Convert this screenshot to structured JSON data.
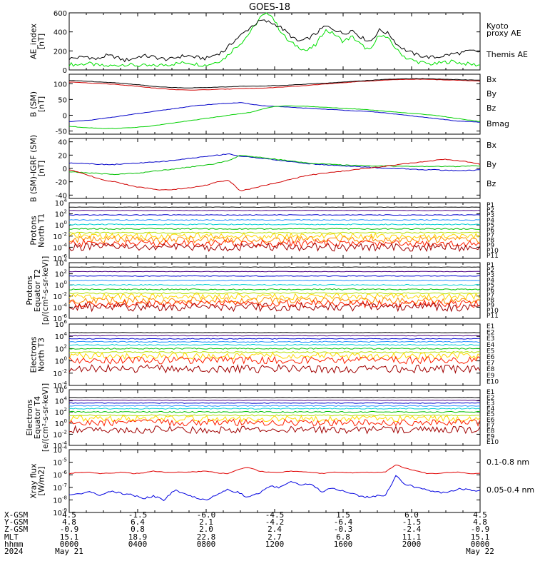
{
  "title": "GOES-18",
  "chart_data": [
    {
      "id": "ae",
      "type": "line",
      "ylabel": [
        "AE_index",
        "[nT]"
      ],
      "ylim": [
        0,
        600
      ],
      "log": false,
      "yticks": [
        0,
        200,
        400,
        600
      ],
      "series": [
        {
          "name": "Kyoto proxy AE",
          "color": "#00e000",
          "values": [
            60,
            55,
            70,
            50,
            40,
            45,
            60,
            50,
            45,
            40,
            50,
            60,
            70,
            80,
            60,
            50,
            80,
            120,
            220,
            300,
            420,
            560,
            600,
            430,
            300,
            250,
            200,
            260,
            420,
            380,
            300,
            350,
            260,
            200,
            380,
            320,
            200,
            120,
            90,
            70,
            60,
            80,
            90,
            70,
            60,
            50
          ]
        },
        {
          "name": "Themis AE",
          "color": "#000000",
          "values": [
            120,
            130,
            140,
            110,
            150,
            140,
            100,
            120,
            150,
            140,
            120,
            110,
            140,
            150,
            130,
            120,
            160,
            200,
            300,
            380,
            460,
            520,
            500,
            460,
            380,
            300,
            320,
            380,
            460,
            430,
            380,
            420,
            340,
            300,
            420,
            380,
            260,
            200,
            160,
            140,
            130,
            150,
            170,
            180,
            200,
            190
          ]
        }
      ]
    },
    {
      "id": "bsm",
      "type": "line",
      "ylabel": [
        "B (SM)",
        "[nT]"
      ],
      "ylim": [
        -60,
        130
      ],
      "log": false,
      "yticks": [
        -50,
        0,
        50,
        100
      ],
      "series": [
        {
          "name": "Bx",
          "color": "#0000c8",
          "values": [
            -20,
            -18,
            -15,
            -10,
            -5,
            0,
            5,
            10,
            15,
            20,
            25,
            30,
            33,
            36,
            38,
            40,
            35,
            30,
            28,
            26,
            24,
            22,
            20,
            18,
            16,
            14,
            12,
            10,
            6,
            2,
            -2,
            -6,
            -10,
            -14,
            -18,
            -20,
            -22
          ]
        },
        {
          "name": "By",
          "color": "#00d000",
          "values": [
            -35,
            -38,
            -40,
            -42,
            -42,
            -40,
            -38,
            -35,
            -30,
            -25,
            -20,
            -15,
            -10,
            -5,
            0,
            5,
            10,
            20,
            28,
            30,
            29,
            28,
            26,
            24,
            22,
            20,
            18,
            15,
            12,
            9,
            6,
            3,
            0,
            -5,
            -10,
            -15,
            -20
          ]
        },
        {
          "name": "Bz",
          "color": "#d00000",
          "values": [
            105,
            104,
            102,
            100,
            98,
            95,
            92,
            88,
            84,
            82,
            80,
            80,
            81,
            82,
            83,
            85,
            85,
            86,
            88,
            90,
            92,
            95,
            98,
            100,
            103,
            106,
            108,
            110,
            112,
            113,
            114,
            114,
            113,
            112,
            111,
            110,
            108
          ]
        },
        {
          "name": "Bmag",
          "color": "#000000",
          "values": [
            110,
            109,
            107,
            105,
            103,
            100,
            97,
            93,
            90,
            88,
            87,
            87,
            88,
            89,
            90,
            92,
            92,
            93,
            94,
            95,
            97,
            99,
            101,
            103,
            105,
            108,
            110,
            112,
            114,
            115,
            116,
            116,
            115,
            114,
            113,
            112,
            111
          ]
        }
      ]
    },
    {
      "id": "bigrf",
      "type": "line",
      "ylabel": [
        "B (SM)-IGRF (SM)",
        "[nT]"
      ],
      "ylim": [
        -45,
        45
      ],
      "log": false,
      "yticks": [
        -40,
        -20,
        0,
        20,
        40
      ],
      "series": [
        {
          "name": "Bx",
          "color": "#0000c8",
          "values": [
            8,
            8,
            7,
            6,
            6,
            7,
            8,
            9,
            10,
            12,
            14,
            16,
            18,
            20,
            22,
            18,
            17,
            15,
            13,
            11,
            9,
            7,
            6,
            5,
            4,
            3,
            2,
            1,
            0,
            0,
            -1,
            -2,
            -2,
            -3,
            -3,
            -3,
            -2
          ]
        },
        {
          "name": "By",
          "color": "#00c000",
          "values": [
            -5,
            -6,
            -7,
            -8,
            -9,
            -8,
            -7,
            -5,
            -3,
            -1,
            1,
            3,
            5,
            8,
            12,
            20,
            18,
            16,
            14,
            12,
            10,
            8,
            7,
            6,
            5,
            5,
            4,
            4,
            4,
            3,
            3,
            3,
            3,
            3,
            3,
            4,
            4
          ]
        },
        {
          "name": "Bz",
          "color": "#d00000",
          "values": [
            -2,
            -6,
            -12,
            -18,
            -20,
            -24,
            -28,
            -30,
            -32,
            -32,
            -30,
            -28,
            -25,
            -20,
            -18,
            -34,
            -30,
            -26,
            -22,
            -18,
            -14,
            -10,
            -8,
            -6,
            -4,
            -2,
            0,
            2,
            4,
            6,
            8,
            10,
            12,
            14,
            12,
            10,
            6
          ]
        }
      ]
    },
    {
      "id": "pnorth",
      "type": "line",
      "ylabel": [
        "Protons",
        "North T1"
      ],
      "ylim": [
        -6,
        4
      ],
      "log": true,
      "yticks": [
        -6,
        -4,
        -2,
        0,
        2,
        4
      ],
      "series": [
        {
          "name": "P1",
          "color": "#000000",
          "values": [
            3.2
          ]
        },
        {
          "name": "P2",
          "color": "#4b0082",
          "values": [
            2.6
          ]
        },
        {
          "name": "P3",
          "color": "#0000cd",
          "values": [
            1.8
          ]
        },
        {
          "name": "P4",
          "color": "#1e90ff",
          "values": [
            0.9
          ]
        },
        {
          "name": "P5",
          "color": "#00ced1",
          "values": [
            0.1
          ]
        },
        {
          "name": "P6",
          "color": "#00c000",
          "values": [
            -0.7
          ]
        },
        {
          "name": "P7",
          "color": "#b0e000",
          "values": [
            -1.4
          ]
        },
        {
          "name": "P8",
          "color": "#ffd700",
          "values": [
            -2.0
          ]
        },
        {
          "name": "P9",
          "color": "#ff8c00",
          "values": [
            -2.6
          ]
        },
        {
          "name": "P10",
          "color": "#ff2000",
          "values": [
            -3.3
          ]
        },
        {
          "name": "P11",
          "color": "#a00000",
          "values": [
            -4.0
          ]
        }
      ]
    },
    {
      "id": "pequator",
      "type": "line",
      "ylabel": [
        "Protons",
        "Equator T2",
        "[p/(cm²-s-sr-keV)]"
      ],
      "ylim": [
        -6,
        4
      ],
      "log": true,
      "yticks": [
        -6,
        -4,
        -2,
        0,
        2,
        4
      ],
      "series": [
        {
          "name": "P1",
          "color": "#000000",
          "values": [
            3.2
          ]
        },
        {
          "name": "P2",
          "color": "#4b0082",
          "values": [
            2.4
          ]
        },
        {
          "name": "P3",
          "color": "#0000cd",
          "values": [
            1.6
          ]
        },
        {
          "name": "P4",
          "color": "#1e90ff",
          "values": [
            0.8
          ]
        },
        {
          "name": "P5",
          "color": "#00ced1",
          "values": [
            0.0
          ]
        },
        {
          "name": "P6",
          "color": "#00c000",
          "values": [
            -0.8
          ]
        },
        {
          "name": "P7",
          "color": "#b0e000",
          "values": [
            -1.5
          ]
        },
        {
          "name": "P8",
          "color": "#ffd700",
          "values": [
            -2.1
          ]
        },
        {
          "name": "P9",
          "color": "#ff8c00",
          "values": [
            -2.8
          ]
        },
        {
          "name": "P10",
          "color": "#ff2000",
          "values": [
            -3.4
          ]
        },
        {
          "name": "P11",
          "color": "#a00000",
          "values": [
            -4.0
          ]
        }
      ]
    },
    {
      "id": "enorth",
      "type": "line",
      "ylabel": [
        "Electrons",
        "North T3"
      ],
      "ylim": [
        -4,
        6
      ],
      "log": true,
      "yticks": [
        -4,
        -2,
        0,
        2,
        4,
        6
      ],
      "series": [
        {
          "name": "E1",
          "color": "#000000",
          "values": [
            4.6
          ]
        },
        {
          "name": "E2",
          "color": "#4b0082",
          "values": [
            4.1
          ]
        },
        {
          "name": "E3",
          "color": "#0000cd",
          "values": [
            3.6
          ]
        },
        {
          "name": "E4",
          "color": "#1e90ff",
          "values": [
            3.1
          ]
        },
        {
          "name": "E5",
          "color": "#00ced1",
          "values": [
            2.6
          ]
        },
        {
          "name": "E6",
          "color": "#00c000",
          "values": [
            2.0
          ]
        },
        {
          "name": "E7",
          "color": "#b0e000",
          "values": [
            1.4
          ]
        },
        {
          "name": "E8",
          "color": "#ffd700",
          "values": [
            0.8
          ]
        },
        {
          "name": "E9",
          "color": "#ff2000",
          "values": [
            0.1
          ]
        },
        {
          "name": "E10",
          "color": "#a00000",
          "values": [
            -1.3
          ]
        }
      ]
    },
    {
      "id": "eequator",
      "type": "line",
      "ylabel": [
        "Electrons",
        "Equator T4",
        "[e/(cm²-s-sr-keV)]"
      ],
      "ylim": [
        -4,
        6
      ],
      "log": true,
      "yticks": [
        -4,
        -2,
        0,
        2,
        4,
        6
      ],
      "series": [
        {
          "name": "E1",
          "color": "#000000",
          "values": [
            4.6
          ]
        },
        {
          "name": "E2",
          "color": "#4b0082",
          "values": [
            4.1
          ]
        },
        {
          "name": "E3",
          "color": "#0000cd",
          "values": [
            3.6
          ]
        },
        {
          "name": "E4",
          "color": "#1e90ff",
          "values": [
            3.1
          ]
        },
        {
          "name": "E5",
          "color": "#00ced1",
          "values": [
            2.6
          ]
        },
        {
          "name": "E6",
          "color": "#00c000",
          "values": [
            2.0
          ]
        },
        {
          "name": "E7",
          "color": "#b0e000",
          "values": [
            1.4
          ]
        },
        {
          "name": "E8",
          "color": "#ffd700",
          "values": [
            0.8
          ]
        },
        {
          "name": "E9",
          "color": "#ff2000",
          "values": [
            0.1
          ]
        },
        {
          "name": "E10",
          "color": "#a00000",
          "values": [
            -1.2
          ]
        }
      ]
    },
    {
      "id": "xray",
      "type": "line",
      "ylabel": [
        "Xray flux",
        "[W/m2]"
      ],
      "ylim": [
        -9,
        -4
      ],
      "log": true,
      "yticks": [
        -9,
        -8,
        -7,
        -6,
        -5,
        -4
      ],
      "series": [
        {
          "name": "0.1-0.8 nm",
          "color": "#e00000",
          "values": [
            -5.9,
            -5.8,
            -5.8,
            -5.9,
            -5.85,
            -5.8,
            -5.9,
            -5.85,
            -5.7,
            -5.8,
            -5.8,
            -5.8,
            -5.75,
            -5.7,
            -5.85,
            -5.9,
            -5.6,
            -5.4,
            -5.7,
            -5.8,
            -5.8,
            -5.7,
            -5.75,
            -5.8,
            -5.9,
            -5.8,
            -5.8,
            -5.85,
            -5.8,
            -5.8,
            -5.8,
            -5.2,
            -5.5,
            -5.7,
            -5.9,
            -5.9,
            -5.8,
            -5.8,
            -5.9,
            -5.9
          ]
        },
        {
          "name": "0.05-0.4 nm",
          "color": "#0000e0",
          "values": [
            -7.6,
            -7.5,
            -7.4,
            -7.6,
            -7.3,
            -7.5,
            -7.6,
            -7.9,
            -7.7,
            -8.0,
            -7.2,
            -7.5,
            -7.8,
            -8.0,
            -7.6,
            -7.2,
            -7.4,
            -7.8,
            -7.5,
            -6.9,
            -7.0,
            -6.5,
            -6.8,
            -6.7,
            -7.4,
            -7.0,
            -7.3,
            -7.5,
            -7.8,
            -7.7,
            -7.6,
            -6.1,
            -6.8,
            -7.0,
            -7.2,
            -7.4,
            -7.4,
            -7.1,
            -7.2,
            -7.3
          ]
        }
      ]
    }
  ],
  "right_labels": {
    "ae": [
      "Kyoto",
      "proxy AE",
      "Themis AE"
    ],
    "bsm": [
      "Bx",
      "By",
      "Bz",
      "Bmag"
    ],
    "bigrf": [
      "Bx",
      "By",
      "Bz"
    ],
    "pnorth": [
      "P1",
      "P2",
      "P3",
      "P4",
      "P5",
      "P6",
      "P7",
      "P8",
      "P9",
      "P10",
      "P11"
    ],
    "pequator": [
      "P1",
      "P2",
      "P3",
      "P4",
      "P5",
      "P6",
      "P7",
      "P8",
      "P9",
      "P10",
      "P11"
    ],
    "enorth": [
      "E1",
      "E2",
      "E3",
      "E4",
      "E5",
      "E6",
      "E7",
      "E8",
      "E9",
      "E10"
    ],
    "eequator": [
      "E1",
      "E2",
      "E3",
      "E4",
      "E5",
      "E6",
      "E7",
      "E8",
      "E9",
      "E10"
    ],
    "xray": [
      "0.1-0.8 nm",
      "0.05-0.4 nm"
    ]
  },
  "footer": {
    "labels": [
      "X-GSM",
      "Y-GSM",
      "Z-GSM",
      "MLT",
      "hhmm",
      "2024"
    ],
    "columns": [
      [
        "4.5",
        "4.8",
        "-0.9",
        "15.1",
        "0000",
        "May 21"
      ],
      [
        "-1.5",
        "6.4",
        "0.8",
        "18.9",
        "0400",
        ""
      ],
      [
        "-6.0",
        "2.1",
        "2.0",
        "22.8",
        "0800",
        ""
      ],
      [
        "-4.5",
        "-4.2",
        "2.4",
        "2.7",
        "1200",
        ""
      ],
      [
        "1.5",
        "-6.4",
        "-0.3",
        "6.8",
        "1600",
        ""
      ],
      [
        "6.0",
        "-1.5",
        "-2.4",
        "11.1",
        "2000",
        ""
      ],
      [
        "4.5",
        "4.8",
        "-0.9",
        "15.1",
        "0000",
        "May 22"
      ]
    ]
  }
}
